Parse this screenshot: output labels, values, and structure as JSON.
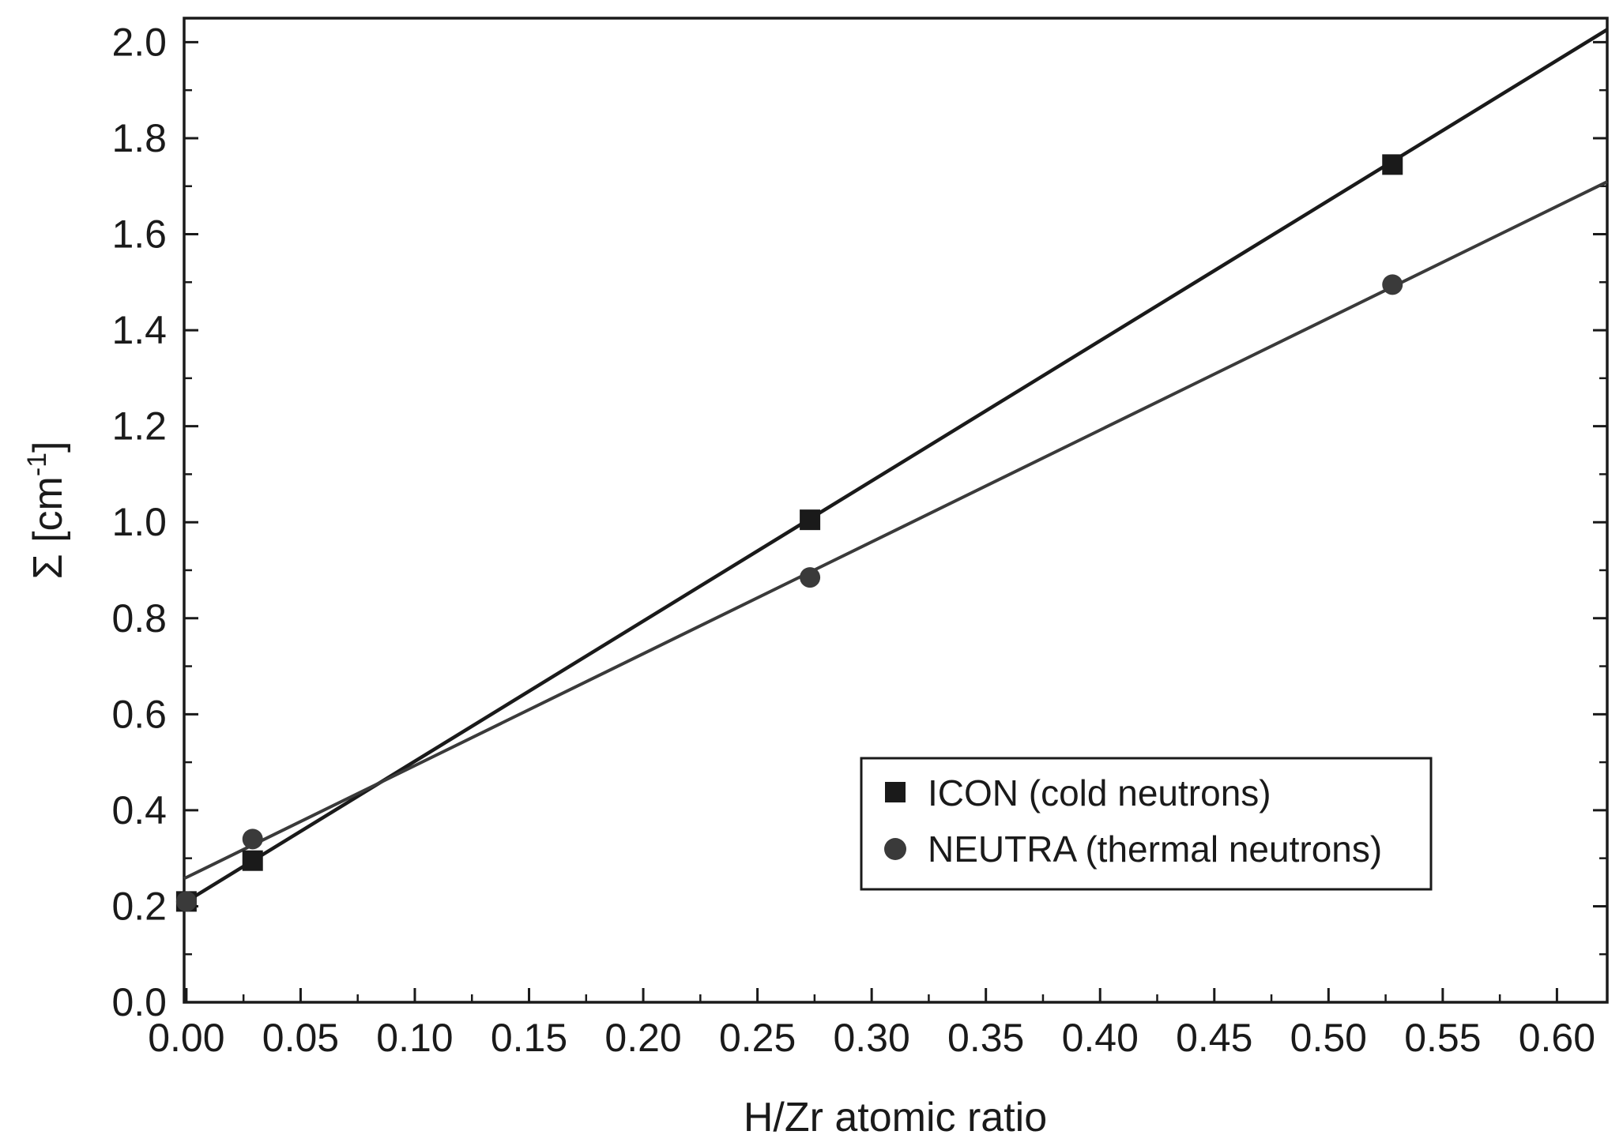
{
  "chart_data": {
    "type": "scatter",
    "xlabel": "H/Zr atomic ratio",
    "ylabel": "Σ [cm",
    "ylabel_sup": "-1",
    "ylabel_close": "]",
    "xlim": [
      -0.001,
      0.622
    ],
    "ylim": [
      0.0,
      2.05
    ],
    "x_ticks": [
      0.0,
      0.05,
      0.1,
      0.15,
      0.2,
      0.25,
      0.3,
      0.35,
      0.4,
      0.45,
      0.5,
      0.55,
      0.6
    ],
    "x_tick_labels": [
      "0.00",
      "0.05",
      "0.10",
      "0.15",
      "0.20",
      "0.25",
      "0.30",
      "0.35",
      "0.40",
      "0.45",
      "0.50",
      "0.55",
      "0.60"
    ],
    "y_ticks": [
      0.0,
      0.2,
      0.4,
      0.6,
      0.8,
      1.0,
      1.2,
      1.4,
      1.6,
      1.8,
      2.0
    ],
    "y_tick_labels": [
      "0.0",
      "0.2",
      "0.4",
      "0.6",
      "0.8",
      "1.0",
      "1.2",
      "1.4",
      "1.6",
      "1.8",
      "2.0"
    ],
    "grid": false,
    "legend_position": "lower-right",
    "series": [
      {
        "name": "ICON (cold neutrons)",
        "marker": "square",
        "color": "#1a1a1a",
        "x": [
          0.0,
          0.029,
          0.273,
          0.528
        ],
        "y": [
          0.21,
          0.295,
          1.005,
          1.745
        ],
        "fit": {
          "slope": 2.92,
          "intercept": 0.21
        }
      },
      {
        "name": "NEUTRA (thermal neutrons)",
        "marker": "circle",
        "color": "#3a3a3a",
        "x": [
          0.0,
          0.029,
          0.273,
          0.528
        ],
        "y": [
          0.21,
          0.34,
          0.885,
          1.495
        ],
        "fit": {
          "slope": 2.33,
          "intercept": 0.26
        }
      }
    ]
  }
}
